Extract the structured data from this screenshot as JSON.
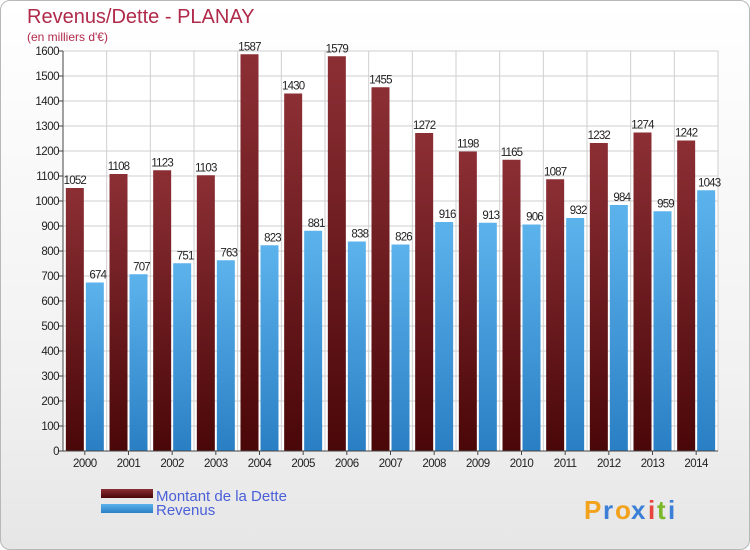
{
  "chart_data": {
    "type": "bar",
    "title": "Revenus/Dette - PLANAY",
    "subtitle": "(en milliers d'€)",
    "categories": [
      "2000",
      "2001",
      "2002",
      "2003",
      "2004",
      "2005",
      "2006",
      "2007",
      "2008",
      "2009",
      "2010",
      "2011",
      "2012",
      "2013",
      "2014"
    ],
    "series": [
      {
        "name": "Montant de la Dette",
        "color": "#7b1e24",
        "values": [
          1052,
          1108,
          1123,
          1103,
          1587,
          1430,
          1579,
          1455,
          1272,
          1198,
          1165,
          1087,
          1232,
          1274,
          1242
        ]
      },
      {
        "name": "Revenus",
        "color": "#3a9be3",
        "values": [
          674,
          707,
          751,
          763,
          823,
          881,
          838,
          826,
          916,
          913,
          906,
          932,
          984,
          959,
          1043
        ]
      }
    ],
    "ylim": [
      0,
      1600
    ],
    "ytick_step": 100,
    "grid": true,
    "legend": "bottom-left"
  },
  "brand": {
    "logo_letters": [
      "P",
      "r",
      "o",
      "x",
      "i",
      "t",
      "i"
    ],
    "logo_colors": [
      "#f2a21b",
      "#3b7fd6",
      "#f2a21b",
      "#3b7fd6",
      "#e8453c",
      "#7ab828",
      "#3b7fd6"
    ]
  }
}
